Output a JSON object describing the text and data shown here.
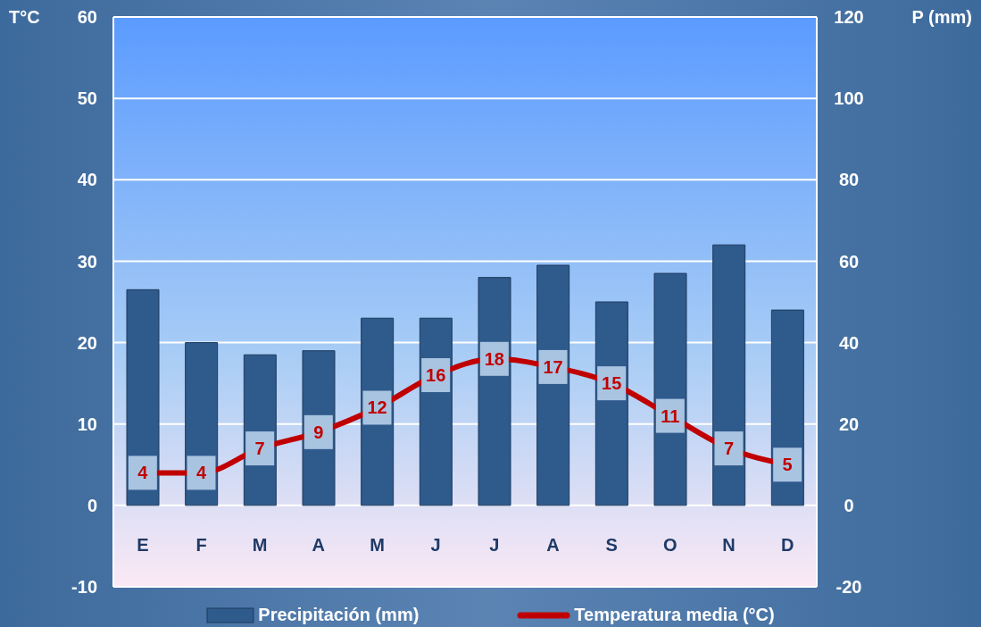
{
  "chart_data": {
    "type": "bar",
    "ylabel": "T°C",
    "y2label": "P (mm)",
    "categories": [
      "E",
      "F",
      "M",
      "A",
      "M",
      "J",
      "J",
      "A",
      "S",
      "O",
      "N",
      "D"
    ],
    "series": [
      {
        "name": "Precipitación (mm)",
        "axis": "y2",
        "color": "#2f5a8c",
        "values": [
          53,
          40,
          37,
          38,
          46,
          46,
          56,
          59,
          50,
          57,
          64,
          48
        ]
      },
      {
        "name": "Temperatura media (°C)",
        "type": "line",
        "color": "#c00000",
        "marker": "square",
        "values": [
          4,
          4,
          7,
          9,
          12,
          16,
          18,
          17,
          15,
          11,
          7,
          5
        ],
        "value_labels": [
          "4",
          "4",
          "7",
          "9",
          "12",
          "16",
          "18",
          "17",
          "15",
          "11",
          "7",
          "5"
        ]
      }
    ],
    "ylim": [
      -10,
      60
    ],
    "yticks": [
      -10,
      0,
      10,
      20,
      30,
      40,
      50,
      60
    ],
    "y2lim": [
      -20,
      120
    ],
    "y2ticks": [
      -20,
      0,
      20,
      40,
      60,
      80,
      100,
      120
    ],
    "grid": "y",
    "legend": "bottom",
    "line_style": "solid"
  }
}
